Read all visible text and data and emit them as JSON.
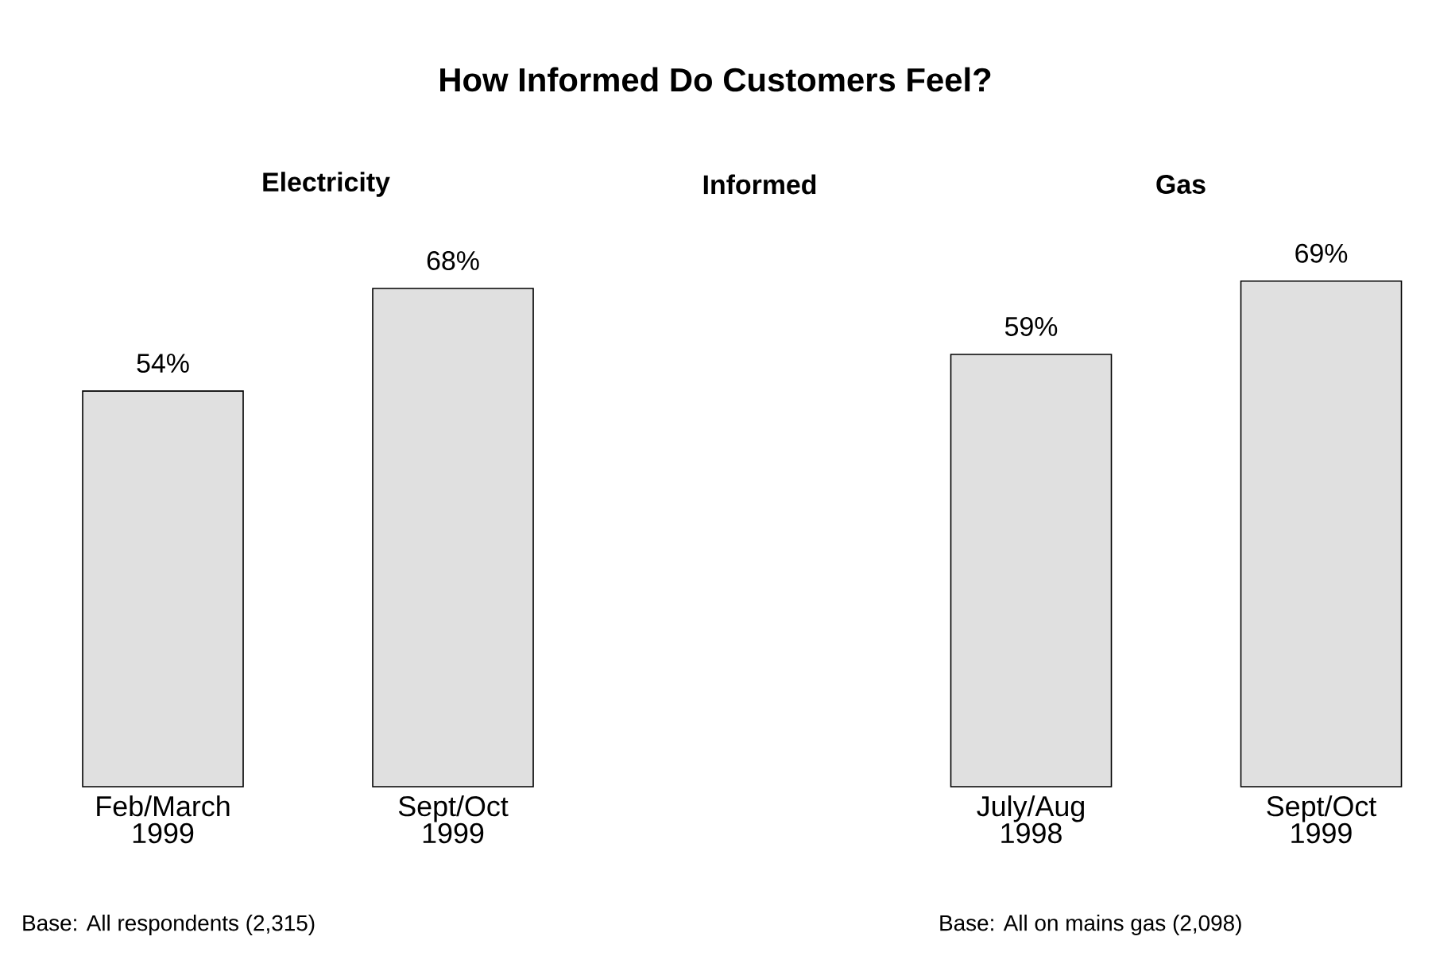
{
  "chart_data": [
    {
      "type": "bar",
      "title": "How Informed Do Customers Feel?",
      "subtitle": "Electricity",
      "categories": [
        "Feb/March 1999",
        "Sept/Oct 1999"
      ],
      "values": [
        54,
        68
      ],
      "value_labels": [
        "54%",
        "68%"
      ],
      "color": "#e0e0e0",
      "annotations": [
        "Informed",
        "Base: All respondents (2,315)"
      ]
    },
    {
      "type": "bar",
      "subtitle": "Gas",
      "categories": [
        "July/Aug 1998",
        "Sept/Oct 1999"
      ],
      "values": [
        59,
        69
      ],
      "value_labels": [
        "59%",
        "69%"
      ],
      "color": "#e0e0e0",
      "annotations": [
        "Base: All on mains gas (2,098)"
      ]
    }
  ]
}
